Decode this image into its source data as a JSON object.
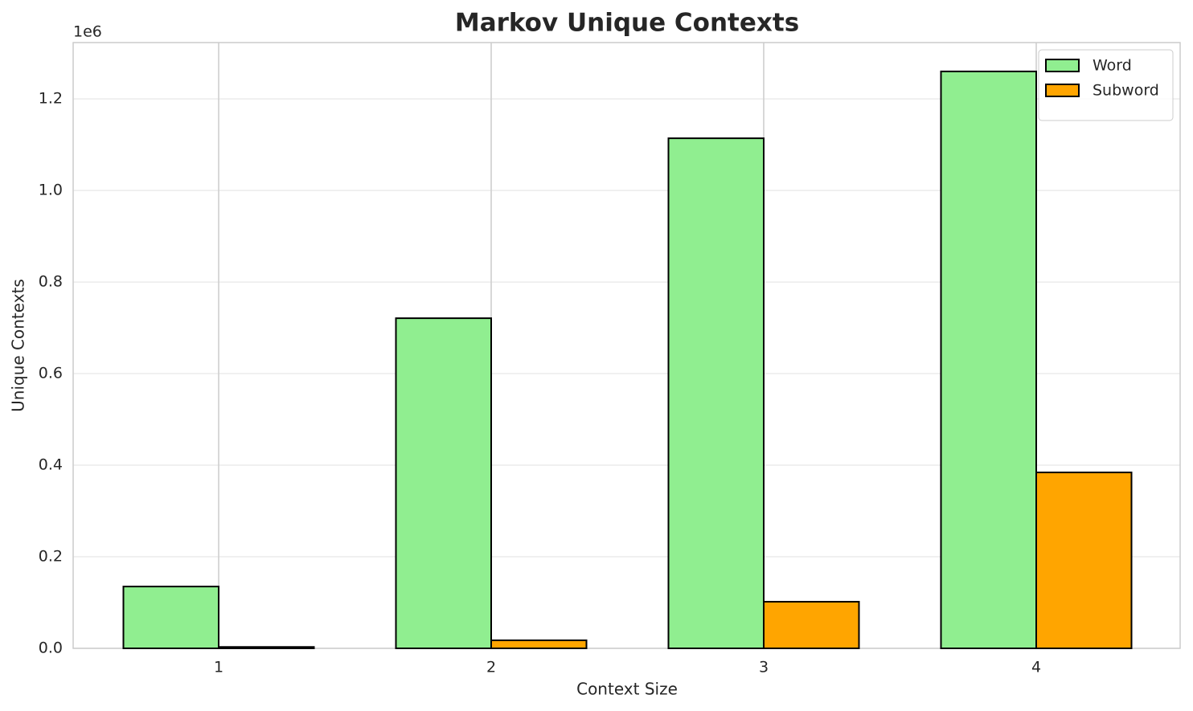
{
  "chart_data": {
    "type": "bar",
    "title": "Markov Unique Contexts",
    "x_label": "Context Size",
    "y_label": "Unique Contexts",
    "y_offset_label": "1e6",
    "categories": [
      "1",
      "2",
      "3",
      "4"
    ],
    "series": [
      {
        "name": "Word",
        "color": "#90ee90",
        "values": [
          135000,
          721000,
          1114000,
          1260000
        ]
      },
      {
        "name": "Subword",
        "color": "#ffa500",
        "values": [
          3000,
          17500,
          101800,
          384200
        ]
      }
    ],
    "ylim": [
      0,
      1323000
    ],
    "yticks": [
      {
        "value": 0,
        "label": "0.0"
      },
      {
        "value": 200000,
        "label": "0.2"
      },
      {
        "value": 400000,
        "label": "0.4"
      },
      {
        "value": 600000,
        "label": "0.6"
      },
      {
        "value": 800000,
        "label": "0.8"
      },
      {
        "value": 1000000,
        "label": "1.0"
      },
      {
        "value": 1200000,
        "label": "1.2"
      }
    ],
    "grid": true,
    "legend": "upper right"
  }
}
